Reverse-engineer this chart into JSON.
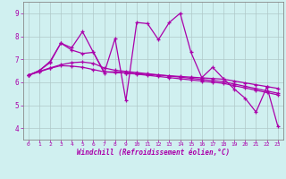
{
  "title": "",
  "xlabel": "Windchill (Refroidissement éolien,°C)",
  "ylabel": "",
  "background_color": "#d0f0f0",
  "line_color": "#aa00aa",
  "grid_color": "#b0c8c8",
  "x": [
    0,
    1,
    2,
    3,
    4,
    5,
    6,
    7,
    8,
    9,
    10,
    11,
    12,
    13,
    14,
    15,
    16,
    17,
    18,
    19,
    20,
    21,
    22,
    23
  ],
  "series1": [
    6.3,
    6.5,
    6.9,
    7.7,
    7.5,
    8.2,
    7.3,
    6.4,
    7.9,
    5.2,
    8.6,
    8.55,
    7.85,
    8.6,
    9.0,
    7.3,
    6.2,
    6.65,
    6.15,
    5.7,
    5.3,
    4.7,
    5.8,
    4.1
  ],
  "series2": [
    6.3,
    6.5,
    6.85,
    7.7,
    7.4,
    7.25,
    7.3,
    6.45,
    6.45,
    6.4,
    6.35,
    6.3,
    6.25,
    6.2,
    6.15,
    6.1,
    6.05,
    6.0,
    5.95,
    5.85,
    5.75,
    5.65,
    5.55,
    5.45
  ],
  "series3": [
    6.3,
    6.47,
    6.62,
    6.76,
    6.85,
    6.88,
    6.82,
    6.62,
    6.52,
    6.47,
    6.42,
    6.37,
    6.32,
    6.27,
    6.22,
    6.17,
    6.12,
    6.07,
    6.02,
    5.92,
    5.82,
    5.72,
    5.62,
    5.52
  ],
  "series4": [
    6.3,
    6.45,
    6.6,
    6.72,
    6.7,
    6.65,
    6.55,
    6.45,
    6.42,
    6.4,
    6.37,
    6.34,
    6.31,
    6.28,
    6.25,
    6.22,
    6.19,
    6.16,
    6.13,
    6.05,
    5.97,
    5.89,
    5.81,
    5.73
  ],
  "ylim": [
    3.5,
    9.5
  ],
  "yticks": [
    4,
    5,
    6,
    7,
    8,
    9
  ],
  "xticks": [
    0,
    1,
    2,
    3,
    4,
    5,
    6,
    7,
    8,
    9,
    10,
    11,
    12,
    13,
    14,
    15,
    16,
    17,
    18,
    19,
    20,
    21,
    22,
    23
  ],
  "axis_color": "#888888"
}
